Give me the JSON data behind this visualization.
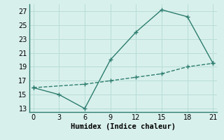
{
  "xlabel": "Humidex (Indice chaleur)",
  "line1_x": [
    0,
    3,
    6,
    9,
    12,
    15,
    18,
    21
  ],
  "line1_y": [
    16,
    15,
    13,
    20,
    24,
    27.2,
    26.2,
    19.5
  ],
  "line2_x": [
    0,
    6,
    9,
    12,
    15,
    18,
    21
  ],
  "line2_y": [
    16,
    16.5,
    17.0,
    17.5,
    18.0,
    19.0,
    19.5
  ],
  "line_color": "#2d7d6f",
  "bg_color": "#d8f0ec",
  "grid_color": "#b8ddd6",
  "xlim": [
    -0.5,
    21.5
  ],
  "ylim": [
    12.5,
    28
  ],
  "xticks": [
    0,
    3,
    6,
    9,
    12,
    15,
    18,
    21
  ],
  "yticks": [
    13,
    15,
    17,
    19,
    21,
    23,
    25,
    27
  ],
  "marker": "+",
  "markersize": 4,
  "linewidth": 1.0,
  "tick_fontsize": 7,
  "xlabel_fontsize": 7.5
}
